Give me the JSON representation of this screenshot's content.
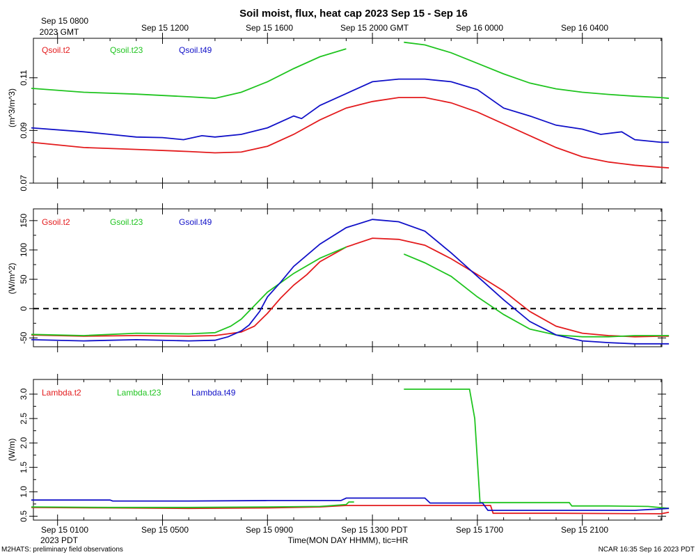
{
  "title": "Soil moist, flux, heat cap 2023 Sep 15 - Sep 16",
  "top_axis": {
    "labels": [
      "Sep 15 0800",
      "Sep 15 1200",
      "Sep 15 1600",
      "Sep 15 2000 GMT",
      "Sep 16 0000",
      "Sep 16 0400"
    ],
    "first_sublabel": "2023 GMT"
  },
  "bottom_axis": {
    "labels": [
      "Sep 15 0100",
      "Sep 15 0500",
      "Sep 15 0900",
      "Sep 15 1300 PDT",
      "Sep 15 1700",
      "Sep 15 2100"
    ],
    "first_sublabel": "2023 PDT",
    "xlabel": "Time(MON DAY HHMM), tic=HR"
  },
  "footer": {
    "left": "M2HATS: preliminary field observations",
    "right": "NCAR 16:35 Sep 16 2023 PDT"
  },
  "colors": {
    "red": "#e31a1c",
    "green": "#1fc41f",
    "blue": "#1010c8"
  },
  "chart_data": [
    {
      "type": "line",
      "panel": "Qsoil",
      "ylabel": "(m^3/m^3)",
      "ylim": [
        0.07,
        0.125
      ],
      "yticks": [
        0.07,
        0.09,
        0.11
      ],
      "ytick_labels": [
        "0.07",
        "0.09",
        "0.11"
      ],
      "x_unit": "hours since Sep 15 00:00 PDT",
      "xlim": [
        0,
        24.3
      ],
      "series": [
        {
          "name": "Qsoil.t2",
          "color": "red",
          "points": [
            [
              0,
              0.0855
            ],
            [
              2,
              0.0835
            ],
            [
              4,
              0.0828
            ],
            [
              6,
              0.082
            ],
            [
              7,
              0.0815
            ],
            [
              8,
              0.0818
            ],
            [
              9,
              0.084
            ],
            [
              10,
              0.0885
            ],
            [
              11,
              0.094
            ],
            [
              12,
              0.0985
            ],
            [
              13,
              0.101
            ],
            [
              14,
              0.1025
            ],
            [
              15,
              0.1025
            ],
            [
              16,
              0.1005
            ],
            [
              17,
              0.097
            ],
            [
              18,
              0.0925
            ],
            [
              19,
              0.088
            ],
            [
              20,
              0.0835
            ],
            [
              21,
              0.08
            ],
            [
              22,
              0.078
            ],
            [
              23,
              0.0768
            ],
            [
              24,
              0.076
            ],
            [
              24.3,
              0.0758
            ]
          ]
        },
        {
          "name": "Qsoil.t23",
          "color": "green",
          "points": [
            [
              0,
              0.106
            ],
            [
              2,
              0.1045
            ],
            [
              4,
              0.1038
            ],
            [
              6,
              0.1028
            ],
            [
              7,
              0.1022
            ],
            [
              8,
              0.1045
            ],
            [
              9,
              0.1085
            ],
            [
              10,
              0.1135
            ],
            [
              11,
              0.118
            ],
            [
              12,
              0.121
            ]
          ],
          "points_2": [
            [
              14.2,
              0.1235
            ],
            [
              15,
              0.1225
            ],
            [
              16,
              0.1195
            ],
            [
              17,
              0.1155
            ],
            [
              18,
              0.1115
            ],
            [
              19,
              0.108
            ],
            [
              20,
              0.1058
            ],
            [
              21,
              0.1045
            ],
            [
              22,
              0.1037
            ],
            [
              23,
              0.103
            ],
            [
              24,
              0.1025
            ],
            [
              24.3,
              0.1022
            ]
          ]
        },
        {
          "name": "Qsoil.t49",
          "color": "blue",
          "points": [
            [
              0,
              0.091
            ],
            [
              2,
              0.0895
            ],
            [
              3,
              0.0885
            ],
            [
              4,
              0.0875
            ],
            [
              5,
              0.0873
            ],
            [
              5.8,
              0.0865
            ],
            [
              6.5,
              0.088
            ],
            [
              7,
              0.0875
            ],
            [
              8,
              0.0885
            ],
            [
              9,
              0.091
            ],
            [
              10,
              0.0955
            ],
            [
              10.3,
              0.0945
            ],
            [
              11,
              0.0995
            ],
            [
              12,
              0.104
            ],
            [
              13,
              0.1085
            ],
            [
              14,
              0.1095
            ],
            [
              15,
              0.1095
            ],
            [
              16,
              0.1085
            ],
            [
              17,
              0.1055
            ],
            [
              18,
              0.0985
            ],
            [
              19,
              0.0955
            ],
            [
              20,
              0.092
            ],
            [
              21,
              0.0905
            ],
            [
              21.7,
              0.0885
            ],
            [
              22.5,
              0.0895
            ],
            [
              23,
              0.0865
            ],
            [
              24,
              0.0855
            ],
            [
              24.3,
              0.0855
            ]
          ]
        }
      ]
    },
    {
      "type": "line",
      "panel": "Gsoil",
      "ylabel": "(W/m^2)",
      "ylim": [
        -65,
        170
      ],
      "yticks": [
        -50,
        0,
        50,
        100,
        150
      ],
      "ytick_labels": [
        "-50",
        "0",
        "50",
        "100",
        "150"
      ],
      "zero_line": true,
      "x_unit": "hours since Sep 15 00:00 PDT",
      "xlim": [
        0,
        24.3
      ],
      "series": [
        {
          "name": "Gsoil.t2",
          "color": "red",
          "points": [
            [
              0,
              -45
            ],
            [
              2,
              -47
            ],
            [
              4,
              -46
            ],
            [
              6,
              -47
            ],
            [
              7,
              -46
            ],
            [
              8,
              -40
            ],
            [
              8.5,
              -30
            ],
            [
              9,
              -8
            ],
            [
              9.5,
              18
            ],
            [
              10,
              40
            ],
            [
              10.5,
              58
            ],
            [
              11,
              80
            ],
            [
              12,
              105
            ],
            [
              13,
              120
            ],
            [
              14,
              118
            ],
            [
              15,
              108
            ],
            [
              16,
              85
            ],
            [
              17,
              58
            ],
            [
              18,
              30
            ],
            [
              19,
              -5
            ],
            [
              20,
              -30
            ],
            [
              21,
              -42
            ],
            [
              22,
              -46
            ],
            [
              23,
              -48
            ],
            [
              24,
              -47
            ],
            [
              24.3,
              -47
            ]
          ]
        },
        {
          "name": "Gsoil.t23",
          "color": "green",
          "points": [
            [
              0,
              -44
            ],
            [
              2,
              -46
            ],
            [
              4,
              -42
            ],
            [
              6,
              -43
            ],
            [
              7,
              -41
            ],
            [
              7.6,
              -30
            ],
            [
              8,
              -18
            ],
            [
              8.5,
              5
            ],
            [
              9,
              28
            ],
            [
              10,
              60
            ],
            [
              11,
              86
            ],
            [
              12,
              105
            ]
          ],
          "points_2": [
            [
              14.2,
              93
            ],
            [
              15,
              78
            ],
            [
              16,
              55
            ],
            [
              17,
              20
            ],
            [
              18,
              -10
            ],
            [
              19,
              -35
            ],
            [
              20,
              -45
            ],
            [
              21,
              -48
            ],
            [
              22,
              -48
            ],
            [
              23,
              -46
            ],
            [
              24,
              -46
            ],
            [
              24.3,
              -46
            ]
          ]
        },
        {
          "name": "Gsoil.t49",
          "color": "blue",
          "points": [
            [
              0,
              -53
            ],
            [
              2,
              -55
            ],
            [
              4,
              -53
            ],
            [
              6,
              -55
            ],
            [
              7,
              -54
            ],
            [
              7.5,
              -48
            ],
            [
              8,
              -38
            ],
            [
              8.3,
              -28
            ],
            [
              8.7,
              -5
            ],
            [
              9,
              20
            ],
            [
              9.5,
              45
            ],
            [
              10,
              72
            ],
            [
              11,
              110
            ],
            [
              12,
              138
            ],
            [
              13,
              152
            ],
            [
              14,
              148
            ],
            [
              15,
              132
            ],
            [
              16,
              95
            ],
            [
              17,
              55
            ],
            [
              18,
              15
            ],
            [
              19,
              -22
            ],
            [
              20,
              -45
            ],
            [
              21,
              -55
            ],
            [
              22,
              -58
            ],
            [
              23,
              -60
            ],
            [
              24,
              -60
            ],
            [
              24.3,
              -60
            ]
          ]
        }
      ]
    },
    {
      "type": "line",
      "panel": "Lambda",
      "ylabel": "(W/m)",
      "ylim": [
        0.42,
        3.3
      ],
      "yticks": [
        0.5,
        1.0,
        1.5,
        2.0,
        2.5,
        3.0
      ],
      "ytick_labels": [
        "0.5",
        "1.0",
        "1.5",
        "2.0",
        "2.5",
        "3.0"
      ],
      "x_unit": "hours since Sep 15 00:00 PDT",
      "xlim": [
        0,
        24.3
      ],
      "series": [
        {
          "name": "Lambda.t2",
          "color": "red",
          "points": [
            [
              0,
              0.68
            ],
            [
              3,
              0.67
            ],
            [
              6,
              0.66
            ],
            [
              9,
              0.67
            ],
            [
              11,
              0.69
            ],
            [
              12,
              0.72
            ],
            [
              14,
              0.72
            ],
            [
              16,
              0.72
            ],
            [
              17.5,
              0.72
            ],
            [
              17.6,
              0.56
            ],
            [
              20,
              0.56
            ],
            [
              24,
              0.55
            ],
            [
              24.3,
              0.58
            ]
          ]
        },
        {
          "name": "Lambda.t23",
          "color": "green",
          "points": [
            [
              0,
              0.69
            ],
            [
              3,
              0.68
            ],
            [
              6,
              0.68
            ],
            [
              9,
              0.69
            ],
            [
              11,
              0.7
            ],
            [
              12,
              0.74
            ],
            [
              12.1,
              0.79
            ],
            [
              12.3,
              0.79
            ]
          ],
          "points_2": [
            [
              14.2,
              3.1
            ],
            [
              16.7,
              3.1
            ],
            [
              16.9,
              2.5
            ],
            [
              17.1,
              0.78
            ],
            [
              19,
              0.78
            ],
            [
              20.5,
              0.78
            ],
            [
              20.6,
              0.71
            ],
            [
              22,
              0.71
            ],
            [
              23.5,
              0.7
            ],
            [
              24.3,
              0.66
            ]
          ]
        },
        {
          "name": "Lambda.t49",
          "color": "blue",
          "points": [
            [
              0,
              0.83
            ],
            [
              3,
              0.83
            ],
            [
              3.1,
              0.81
            ],
            [
              6,
              0.81
            ],
            [
              9,
              0.82
            ],
            [
              11.8,
              0.82
            ],
            [
              12,
              0.87
            ],
            [
              15,
              0.87
            ],
            [
              15.2,
              0.77
            ],
            [
              17.2,
              0.77
            ],
            [
              17.4,
              0.62
            ],
            [
              21,
              0.62
            ],
            [
              23,
              0.62
            ],
            [
              24.3,
              0.66
            ]
          ]
        }
      ]
    }
  ]
}
